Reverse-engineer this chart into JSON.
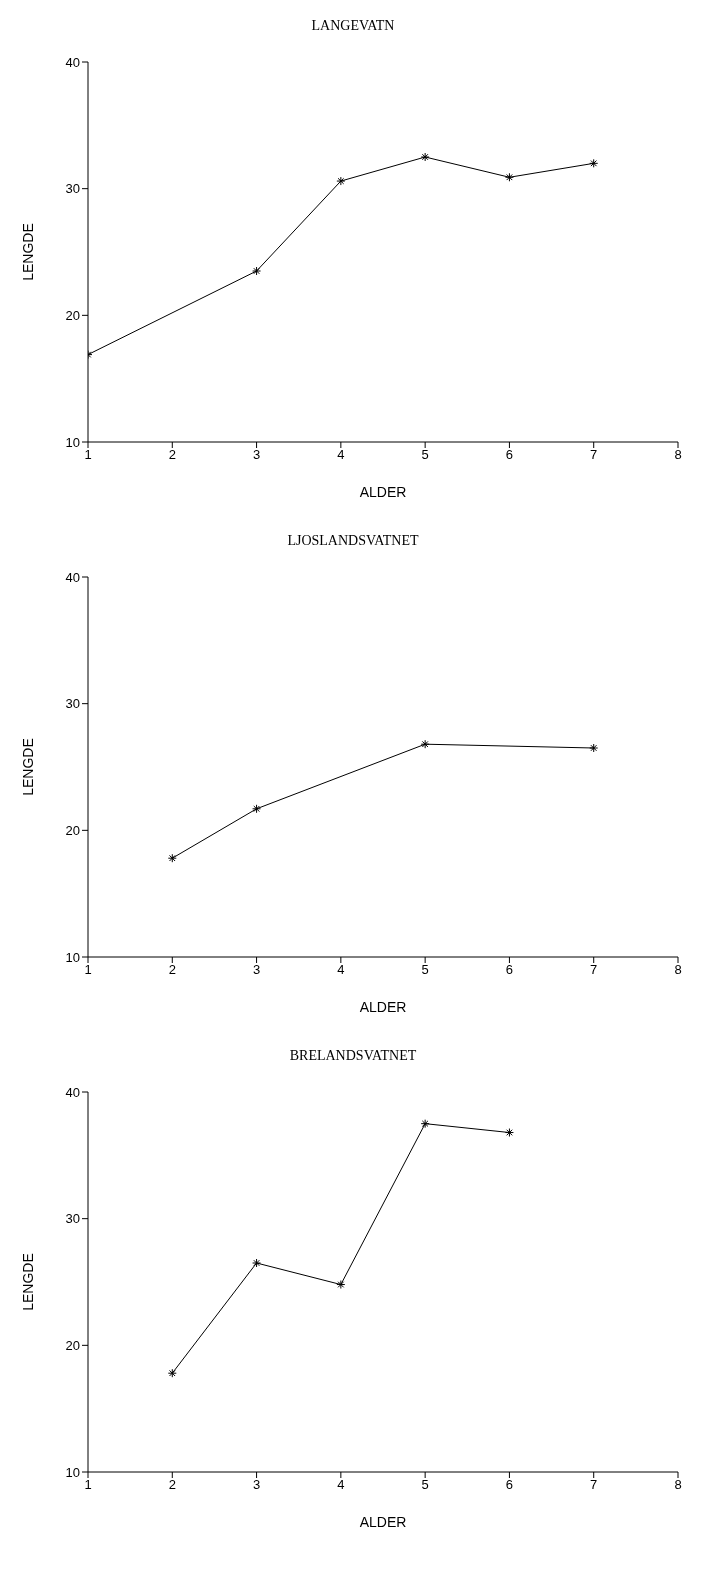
{
  "chart_data": [
    {
      "type": "line",
      "title": "LANGEVATN",
      "xlabel": "ALDER",
      "ylabel": "LENGDE",
      "x": [
        1,
        3,
        4,
        5,
        6,
        7
      ],
      "values": [
        16.9,
        23.5,
        30.6,
        32.5,
        30.9,
        32.0
      ],
      "color": "#000000",
      "marker": "cross",
      "xlim": [
        1,
        8
      ],
      "xticks": [
        1,
        2,
        3,
        4,
        5,
        6,
        7,
        8
      ],
      "ylim": [
        10,
        40
      ],
      "yticks": [
        10,
        20,
        30,
        40
      ]
    },
    {
      "type": "line",
      "title": "LJOSLANDSVATNET",
      "xlabel": "ALDER",
      "ylabel": "LENGDE",
      "x": [
        2,
        3,
        5,
        7
      ],
      "values": [
        17.8,
        21.7,
        26.8,
        26.5
      ],
      "color": "#000000",
      "marker": "cross",
      "xlim": [
        1,
        8
      ],
      "xticks": [
        1,
        2,
        3,
        4,
        5,
        6,
        7,
        8
      ],
      "ylim": [
        10,
        40
      ],
      "yticks": [
        10,
        20,
        30,
        40
      ]
    },
    {
      "type": "line",
      "title": "BRELANDSVATNET",
      "xlabel": "ALDER",
      "ylabel": "LENGDE",
      "x": [
        2,
        3,
        4,
        5,
        6
      ],
      "values": [
        17.8,
        26.5,
        24.8,
        37.5,
        36.8
      ],
      "color": "#000000",
      "marker": "cross",
      "xlim": [
        1,
        8
      ],
      "xticks": [
        1,
        2,
        3,
        4,
        5,
        6,
        7,
        8
      ],
      "ylim": [
        10,
        40
      ],
      "yticks": [
        10,
        20,
        30,
        40
      ]
    }
  ]
}
